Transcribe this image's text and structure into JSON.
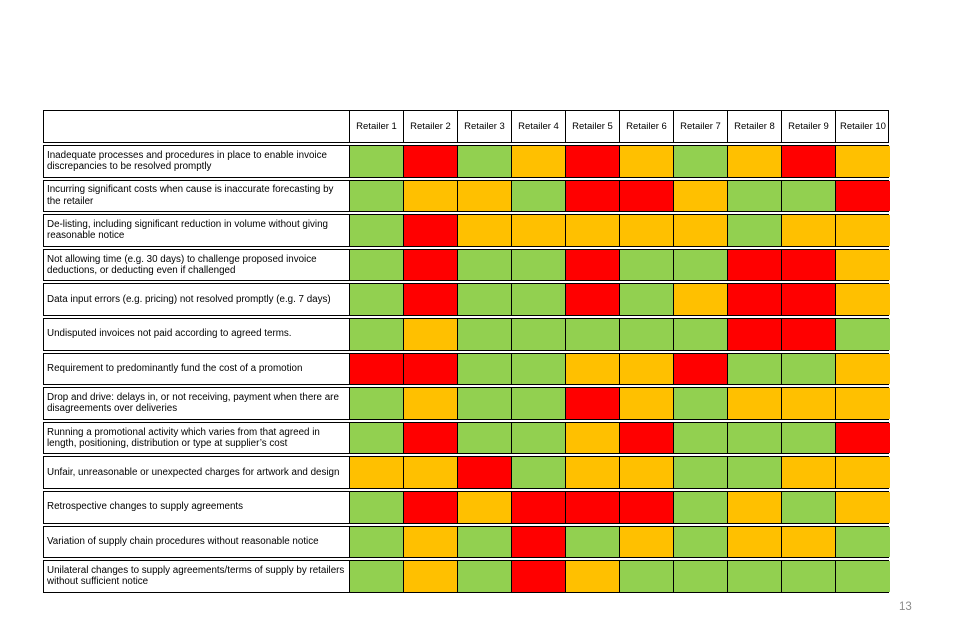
{
  "page_number": "13",
  "colors": {
    "green": "#92D050",
    "amber": "#FFC000",
    "red": "#FF0000",
    "border": "#000000",
    "page_number_text": "#8c8c8c"
  },
  "table": {
    "columns": [
      "Retailer 1",
      "Retailer 2",
      "Retailer 3",
      "Retailer 4",
      "Retailer 5",
      "Retailer 6",
      "Retailer 7",
      "Retailer 8",
      "Retailer 9",
      "Retailer 10"
    ],
    "rows": [
      {
        "label": "Inadequate processes and procedures in place to enable invoice discrepancies to be resolved promptly",
        "ratings": [
          "green",
          "red",
          "green",
          "amber",
          "red",
          "amber",
          "green",
          "amber",
          "red",
          "amber"
        ]
      },
      {
        "label": "Incurring significant costs when cause is inaccurate forecasting by the retailer",
        "ratings": [
          "green",
          "amber",
          "amber",
          "green",
          "red",
          "red",
          "amber",
          "green",
          "green",
          "red"
        ]
      },
      {
        "label": "De-listing, including significant reduction in volume without giving reasonable notice",
        "ratings": [
          "green",
          "red",
          "amber",
          "amber",
          "amber",
          "amber",
          "amber",
          "green",
          "amber",
          "amber"
        ]
      },
      {
        "label": "Not allowing time (e.g. 30 days) to challenge proposed invoice deductions, or deducting even if challenged",
        "ratings": [
          "green",
          "red",
          "green",
          "green",
          "red",
          "green",
          "green",
          "red",
          "red",
          "amber"
        ]
      },
      {
        "label": "Data input errors (e.g. pricing) not resolved promptly (e.g. 7 days)",
        "ratings": [
          "green",
          "red",
          "green",
          "green",
          "red",
          "green",
          "amber",
          "red",
          "red",
          "amber"
        ]
      },
      {
        "label": "Undisputed invoices not paid according to agreed terms.",
        "ratings": [
          "green",
          "amber",
          "green",
          "green",
          "green",
          "green",
          "green",
          "red",
          "red",
          "green"
        ]
      },
      {
        "label": "Requirement to predominantly fund the cost of a promotion",
        "ratings": [
          "red",
          "red",
          "green",
          "green",
          "amber",
          "amber",
          "red",
          "green",
          "green",
          "amber"
        ]
      },
      {
        "label": "Drop and drive: delays in, or not receiving, payment when there are disagreements over deliveries",
        "ratings": [
          "green",
          "amber",
          "green",
          "green",
          "red",
          "amber",
          "green",
          "amber",
          "amber",
          "amber"
        ]
      },
      {
        "label": "Running a promotional activity which varies from that agreed in length, positioning, distribution or type at supplier’s cost",
        "ratings": [
          "green",
          "red",
          "green",
          "green",
          "amber",
          "red",
          "green",
          "green",
          "green",
          "red"
        ]
      },
      {
        "label": "Unfair, unreasonable or unexpected charges for artwork and design",
        "ratings": [
          "amber",
          "amber",
          "red",
          "green",
          "amber",
          "amber",
          "green",
          "green",
          "amber",
          "amber"
        ]
      },
      {
        "label": "Retrospective changes to supply agreements",
        "ratings": [
          "green",
          "red",
          "amber",
          "red",
          "red",
          "red",
          "green",
          "amber",
          "green",
          "amber"
        ]
      },
      {
        "label": "Variation of supply chain procedures without reasonable notice",
        "ratings": [
          "green",
          "amber",
          "green",
          "red",
          "green",
          "amber",
          "green",
          "amber",
          "amber",
          "green"
        ]
      },
      {
        "label": "Unilateral changes to supply agreements/terms of supply by retailers without sufficient notice",
        "ratings": [
          "green",
          "amber",
          "green",
          "red",
          "amber",
          "green",
          "green",
          "green",
          "green",
          "green"
        ]
      }
    ]
  }
}
